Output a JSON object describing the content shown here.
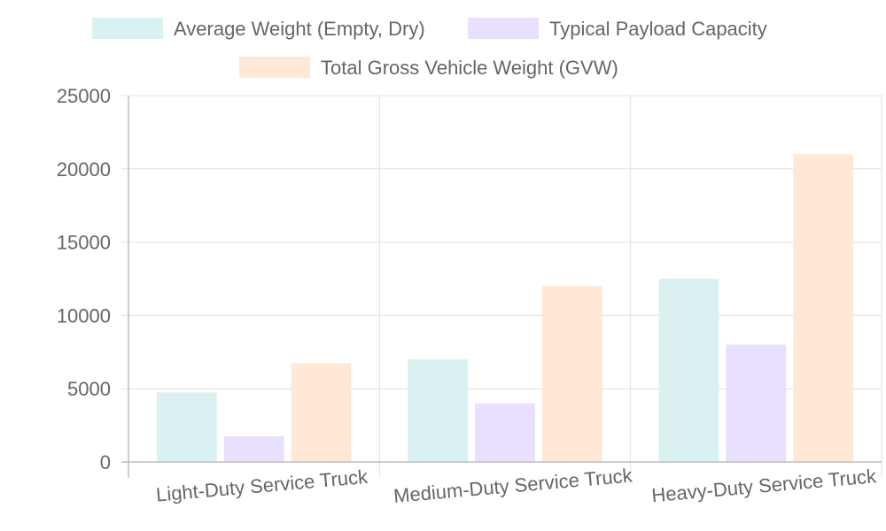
{
  "chart_data": {
    "type": "bar",
    "categories": [
      "Light-Duty Service Truck",
      "Medium-Duty Service Truck",
      "Heavy-Duty Service Truck"
    ],
    "series": [
      {
        "name": "Average Weight (Empty, Dry)",
        "values": [
          4750,
          7000,
          12500
        ],
        "color": "#d9f1f1"
      },
      {
        "name": "Typical Payload Capacity",
        "values": [
          1750,
          4000,
          8000
        ],
        "color": "#e8e0fe"
      },
      {
        "name": "Total Gross Vehicle Weight (GVW)",
        "values": [
          6750,
          12000,
          21000
        ],
        "color": "#ffe9d6"
      }
    ],
    "ylim": [
      0,
      25000
    ],
    "yticks": [
      0,
      5000,
      10000,
      15000,
      20000,
      25000
    ],
    "grid": true,
    "legend_position": "top",
    "xlabel": "",
    "ylabel": ""
  }
}
